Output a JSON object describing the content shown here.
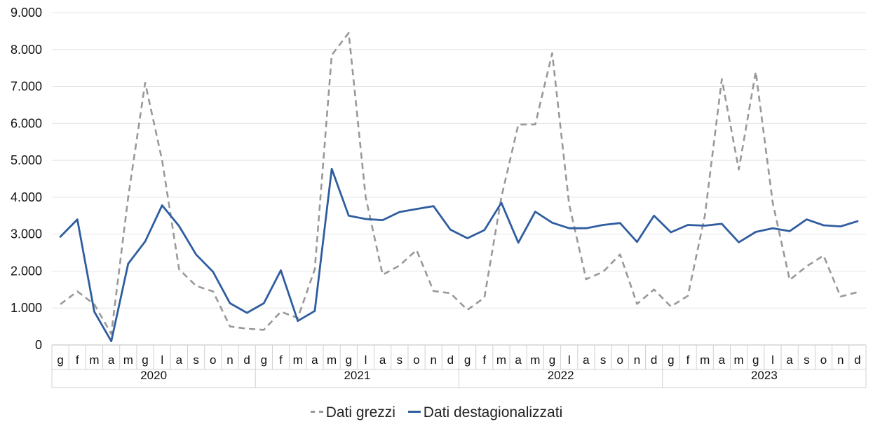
{
  "chart_data": {
    "type": "line",
    "title": "",
    "xlabel": "",
    "ylabel": "",
    "ylim": [
      0,
      9000
    ],
    "yticks": [
      0,
      1000,
      2000,
      3000,
      4000,
      5000,
      6000,
      7000,
      8000,
      9000
    ],
    "ytick_labels": [
      "0",
      "1.000",
      "2.000",
      "3.000",
      "4.000",
      "5.000",
      "6.000",
      "7.000",
      "8.000",
      "9.000"
    ],
    "months": [
      "g",
      "f",
      "m",
      "a",
      "m",
      "g",
      "l",
      "a",
      "s",
      "o",
      "n",
      "d"
    ],
    "years": [
      "2020",
      "2021",
      "2022",
      "2023"
    ],
    "grid": "horizontal",
    "legend_position": "bottom",
    "series": [
      {
        "name": "Dati grezzi",
        "color": "#999999",
        "style": "dashed",
        "values": [
          1100,
          1450,
          1100,
          300,
          4000,
          7100,
          5000,
          2050,
          1600,
          1450,
          500,
          440,
          410,
          900,
          730,
          2050,
          7850,
          8450,
          4000,
          1900,
          2150,
          2570,
          1460,
          1400,
          950,
          1280,
          4000,
          5970,
          5970,
          7900,
          3800,
          1780,
          1980,
          2450,
          1110,
          1500,
          1040,
          1330,
          3500,
          7200,
          4750,
          7400,
          3850,
          1760,
          2130,
          2420,
          1310,
          1430
        ]
      },
      {
        "name": "Dati destagionalizzati",
        "color": "#2f5d9f",
        "style": "solid",
        "values": [
          2930,
          3400,
          900,
          100,
          2200,
          2800,
          3780,
          3220,
          2450,
          1980,
          1130,
          870,
          1130,
          2020,
          650,
          920,
          4770,
          3500,
          3410,
          3380,
          3600,
          3680,
          3760,
          3120,
          2890,
          3110,
          3850,
          2770,
          3610,
          3310,
          3160,
          3160,
          3250,
          3300,
          2790,
          3500,
          3050,
          3250,
          3230,
          3280,
          2780,
          3060,
          3160,
          3080,
          3400,
          3240,
          3210,
          3350
        ]
      }
    ]
  }
}
